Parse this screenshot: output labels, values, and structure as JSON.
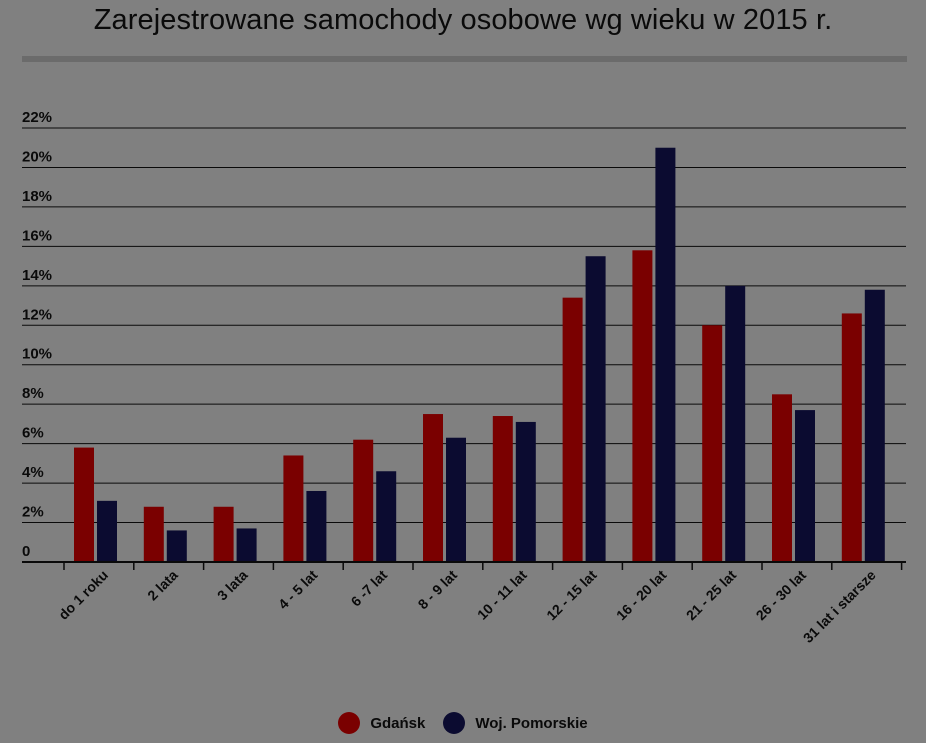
{
  "chart_data": {
    "type": "bar",
    "title": "Zarejestrowane samochody osobowe wg wieku w 2015 r.",
    "categories": [
      "do 1 roku",
      "2 lata",
      "3 lata",
      "4 - 5 lat",
      "6 -7 lat",
      "8 - 9 lat",
      "10 - 11 lat",
      "12 - 15 lat",
      "16 - 20 lat",
      "21 - 25 lat",
      "26 - 30 lat",
      "31 lat i starsze"
    ],
    "series": [
      {
        "name": "Gdańsk",
        "color": "#7a0000",
        "values": [
          5.8,
          2.8,
          2.8,
          5.4,
          6.2,
          7.5,
          7.4,
          13.4,
          15.8,
          12.0,
          8.5,
          12.6
        ]
      },
      {
        "name": "Woj. Pomorskie",
        "color": "#0b0b30",
        "values": [
          3.1,
          1.6,
          1.7,
          3.6,
          4.6,
          6.3,
          7.1,
          15.5,
          21.0,
          14.0,
          7.7,
          13.8
        ]
      }
    ],
    "yticks": [
      "0",
      "2%",
      "4%",
      "6%",
      "8%",
      "10%",
      "12%",
      "14%",
      "16%",
      "18%",
      "20%",
      "22%"
    ],
    "ylim": [
      0,
      22
    ],
    "grid": true,
    "legend_position": "bottom"
  }
}
